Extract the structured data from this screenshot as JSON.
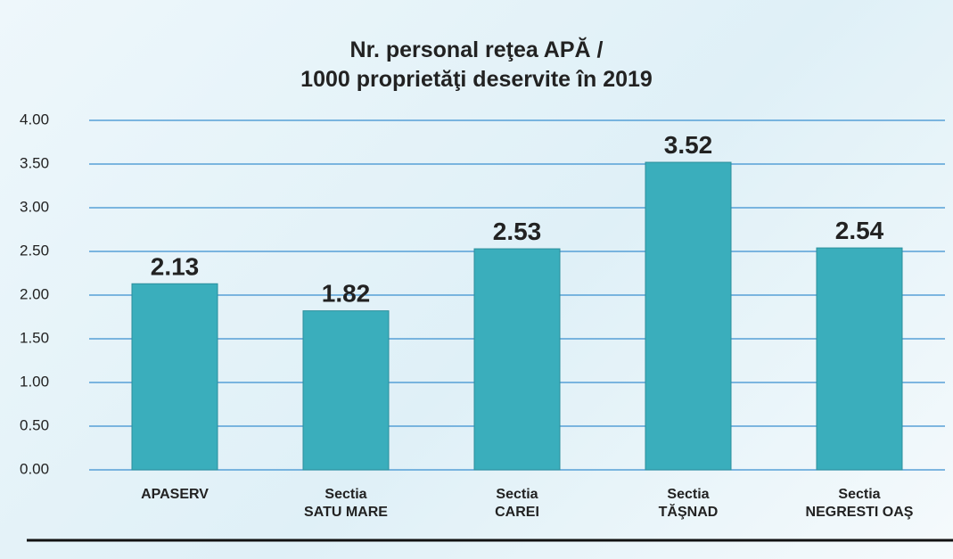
{
  "chart_data": {
    "type": "bar",
    "title": "Nr. personal reţea APĂ /\n1000 proprietăţi deservite în 2019",
    "categories": [
      "APASERV",
      "Sectia\nSATU MARE",
      "Sectia\nCAREI",
      "Sectia\nTĂŞNAD",
      "Sectia\nNEGRESTI OAŞ"
    ],
    "values": [
      2.13,
      1.82,
      2.53,
      3.52,
      2.54
    ],
    "color": "#3aaebc",
    "ylim": [
      0,
      4
    ],
    "yticks": [
      {
        "value": 0,
        "label": "0.00"
      },
      {
        "value": 0.5,
        "label": "0.50"
      },
      {
        "value": 1,
        "label": "1.00"
      },
      {
        "value": 1.5,
        "label": "1.50"
      },
      {
        "value": 2,
        "label": "2.00"
      },
      {
        "value": 2.5,
        "label": "2.50"
      },
      {
        "value": 3,
        "label": "3.00"
      },
      {
        "value": 3.5,
        "label": "3.50"
      },
      {
        "value": 4,
        "label": "4.00"
      }
    ],
    "grid": true
  }
}
